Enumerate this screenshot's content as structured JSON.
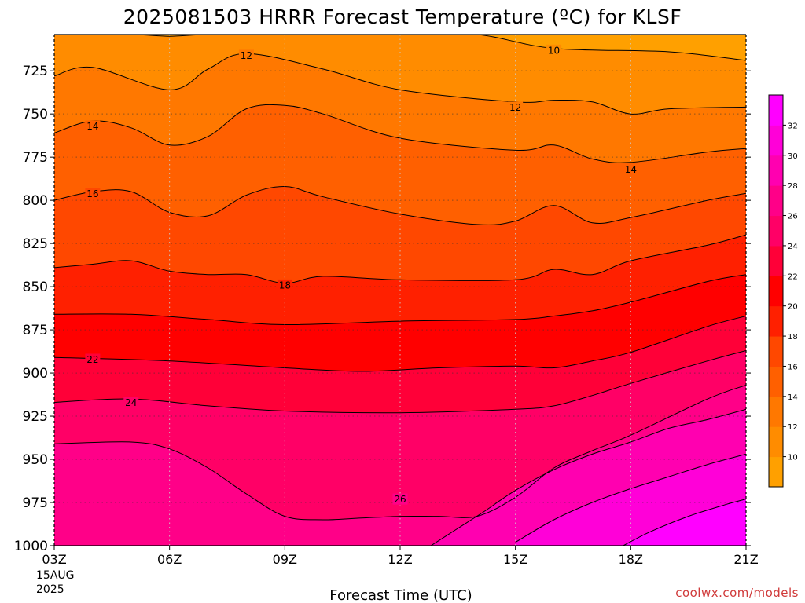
{
  "title": "2025081503 HRRR Forecast Temperature (ºC) for KLSF",
  "xlabel": "Forecast Time (UTC)",
  "credit": "coolwx.com/models",
  "date_label": [
    "15AUG",
    "2025"
  ],
  "chart_data": {
    "type": "heatmap",
    "title": "2025081503 HRRR Forecast Temperature (ºC) for KLSF",
    "xlabel": "Forecast Time (UTC)",
    "ylabel": "",
    "x_ticks": [
      "03Z",
      "06Z",
      "09Z",
      "12Z",
      "15Z",
      "18Z",
      "21Z"
    ],
    "x_tick_hours": [
      3,
      6,
      9,
      12,
      15,
      18,
      21
    ],
    "xlim": [
      3,
      21
    ],
    "y_ticks": [
      725,
      750,
      775,
      800,
      825,
      850,
      875,
      900,
      925,
      950,
      975,
      1000
    ],
    "ylim": [
      1000,
      704
    ],
    "grid": true,
    "contour_levels": [
      10,
      12,
      14,
      16,
      18,
      20,
      22,
      24,
      26,
      28,
      30,
      32
    ],
    "contour_labels": [
      {
        "value": 10,
        "hour": 16.0,
        "p": 713
      },
      {
        "value": 12,
        "hour": 8.0,
        "p": 716
      },
      {
        "value": 12,
        "hour": 15.0,
        "p": 746
      },
      {
        "value": 14,
        "hour": 4.0,
        "p": 757
      },
      {
        "value": 14,
        "hour": 18.0,
        "p": 782
      },
      {
        "value": 16,
        "hour": 4.0,
        "p": 796
      },
      {
        "value": 18,
        "hour": 9.0,
        "p": 849
      },
      {
        "value": 22,
        "hour": 4.0,
        "p": 892
      },
      {
        "value": 24,
        "hour": 5.0,
        "p": 917
      },
      {
        "value": 26,
        "hour": 12.0,
        "p": 973
      }
    ],
    "colorbar": {
      "labels": [
        10,
        12,
        14,
        16,
        18,
        20,
        22,
        24,
        26,
        28,
        30,
        32
      ],
      "colors": [
        "#ffa000",
        "#ff8c00",
        "#ff7800",
        "#ff6000",
        "#ff4800",
        "#ff2000",
        "#ff0000",
        "#ff0038",
        "#ff0066",
        "#ff0088",
        "#ff00b0",
        "#ff00d8",
        "#ff00ff"
      ]
    },
    "series": [
      {
        "value": 10,
        "hours": [
          3,
          5,
          6,
          7,
          9,
          12,
          14,
          16,
          19,
          21
        ],
        "p": [
          704,
          704,
          705,
          704,
          704,
          704,
          704,
          712,
          714,
          719
        ]
      },
      {
        "value": 12,
        "hours": [
          3,
          4,
          6,
          7,
          8,
          10,
          12,
          15,
          16,
          17,
          18,
          19,
          21
        ],
        "p": [
          728,
          723,
          736,
          724,
          715,
          724,
          736,
          743,
          742,
          743,
          750,
          747,
          746
        ]
      },
      {
        "value": 14,
        "hours": [
          3,
          4,
          5,
          6,
          7,
          8,
          9,
          10,
          12,
          15,
          16,
          17,
          18,
          20,
          21
        ],
        "p": [
          761,
          754,
          758,
          768,
          763,
          747,
          745,
          750,
          764,
          771,
          768,
          776,
          778,
          772,
          770
        ]
      },
      {
        "value": 16,
        "hours": [
          3,
          4,
          5,
          6,
          7,
          8,
          9,
          10,
          12,
          14,
          15,
          16,
          17,
          18,
          20,
          21
        ],
        "p": [
          800,
          795,
          795,
          807,
          809,
          797,
          792,
          798,
          808,
          814,
          812,
          803,
          813,
          810,
          800,
          796
        ]
      },
      {
        "value": 18,
        "hours": [
          3,
          4,
          5,
          6,
          7,
          8,
          9,
          10,
          12,
          15,
          16,
          17,
          18,
          20,
          21
        ],
        "p": [
          839,
          837,
          835,
          841,
          843,
          843,
          848,
          844,
          846,
          846,
          840,
          843,
          835,
          826,
          820
        ]
      },
      {
        "value": 20,
        "hours": [
          3,
          5,
          7,
          9,
          12,
          15,
          16,
          17,
          18,
          20,
          21
        ],
        "p": [
          866,
          866,
          869,
          872,
          870,
          869,
          867,
          864,
          859,
          847,
          843
        ]
      },
      {
        "value": 22,
        "hours": [
          3,
          6,
          9,
          11,
          13,
          15,
          16,
          17,
          18,
          20,
          21
        ],
        "p": [
          891,
          893,
          897,
          899,
          897,
          896,
          897,
          893,
          888,
          873,
          867
        ]
      },
      {
        "value": 24,
        "hours": [
          3,
          5,
          7,
          9,
          12,
          15,
          16,
          17,
          18,
          20,
          21
        ],
        "p": [
          917,
          915,
          919,
          922,
          923,
          921,
          919,
          913,
          906,
          893,
          887
        ]
      },
      {
        "value": 26,
        "hours": [
          3,
          5,
          6,
          7,
          8,
          9,
          10,
          11,
          12,
          13,
          14,
          15,
          16,
          17,
          18,
          20,
          21
        ],
        "p": [
          941,
          940,
          944,
          955,
          970,
          983,
          985,
          984,
          983,
          983,
          983,
          972,
          955,
          945,
          936,
          915,
          907
        ]
      },
      {
        "value": 28,
        "hours": [
          12.8,
          13.5,
          14.2,
          15,
          16,
          17,
          18,
          19,
          20,
          21
        ],
        "p": [
          1000,
          990,
          980,
          968,
          956,
          947,
          940,
          932,
          927,
          921
        ]
      },
      {
        "value": 30,
        "hours": [
          15,
          16,
          17,
          18,
          19,
          20,
          21
        ],
        "p": [
          998,
          985,
          975,
          967,
          960,
          953,
          947
        ]
      },
      {
        "value": 32,
        "hours": [
          17.8,
          18.5,
          19.5,
          20.5,
          21
        ],
        "p": [
          1000,
          992,
          983,
          976,
          973
        ]
      }
    ]
  }
}
